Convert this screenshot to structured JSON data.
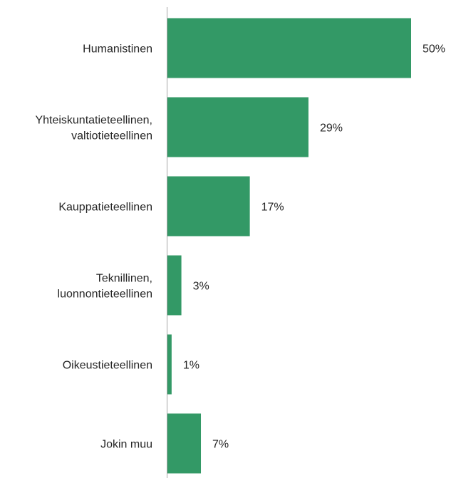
{
  "chart_data": {
    "type": "bar",
    "orientation": "horizontal",
    "categories": [
      [
        "Humanistinen"
      ],
      [
        "Yhteiskuntatieteellinen,",
        "valtiotieteellinen"
      ],
      [
        "Kauppatieteellinen"
      ],
      [
        "Teknillinen,",
        "luonnontieteellinen"
      ],
      [
        "Oikeustieteellinen"
      ],
      [
        "Jokin muu"
      ]
    ],
    "values": [
      50,
      29,
      17,
      3,
      1,
      7
    ],
    "data_labels": [
      "50%",
      "29%",
      "17%",
      "3%",
      "1%",
      "7%"
    ],
    "unit": "%",
    "xlim": [
      0,
      50
    ],
    "grid": false,
    "legend": "none",
    "colors": {
      "bar": "#339966",
      "axis": "#a6a6a6",
      "text": "#262626"
    }
  }
}
